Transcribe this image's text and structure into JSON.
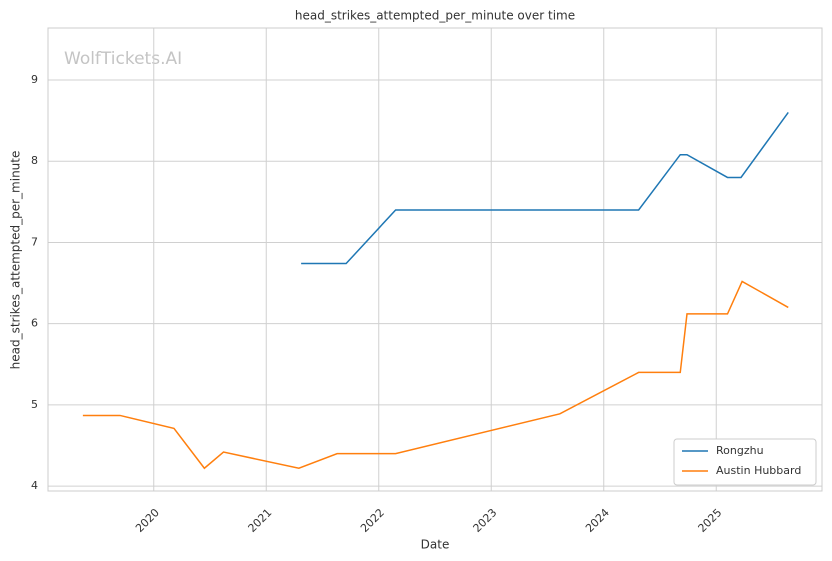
{
  "chart_data": {
    "type": "line",
    "title": "head_strikes_attempted_per_minute over time",
    "xlabel": "Date",
    "ylabel": "head_strikes_attempted_per_minute",
    "watermark": "WolfTickets.AI",
    "xlim": [
      2019.06,
      2025.94
    ],
    "xticks": [
      2020,
      2021,
      2022,
      2023,
      2024,
      2025
    ],
    "ylim": [
      3.94,
      9.64
    ],
    "yticks": [
      4,
      5,
      6,
      7,
      8,
      9
    ],
    "grid": true,
    "legend": "lower right",
    "series": [
      {
        "name": "Rongzhu",
        "color": "#1f77b4",
        "x": [
          2021.31,
          2021.71,
          2022.15,
          2024.31,
          2024.68,
          2024.74,
          2025.1,
          2025.22,
          2025.64
        ],
        "values": [
          6.74,
          6.74,
          7.4,
          7.4,
          8.08,
          8.08,
          7.8,
          7.8,
          8.6
        ]
      },
      {
        "name": "Austin Hubbard",
        "color": "#ff7f0e",
        "x": [
          2019.37,
          2019.7,
          2020.18,
          2020.45,
          2020.62,
          2021.29,
          2021.63,
          2022.15,
          2023.61,
          2024.31,
          2024.68,
          2024.74,
          2025.1,
          2025.23,
          2025.64
        ],
        "values": [
          4.87,
          4.87,
          4.71,
          4.22,
          4.42,
          4.22,
          4.4,
          4.4,
          4.89,
          5.4,
          5.4,
          6.12,
          6.12,
          6.52,
          6.2
        ]
      }
    ]
  }
}
